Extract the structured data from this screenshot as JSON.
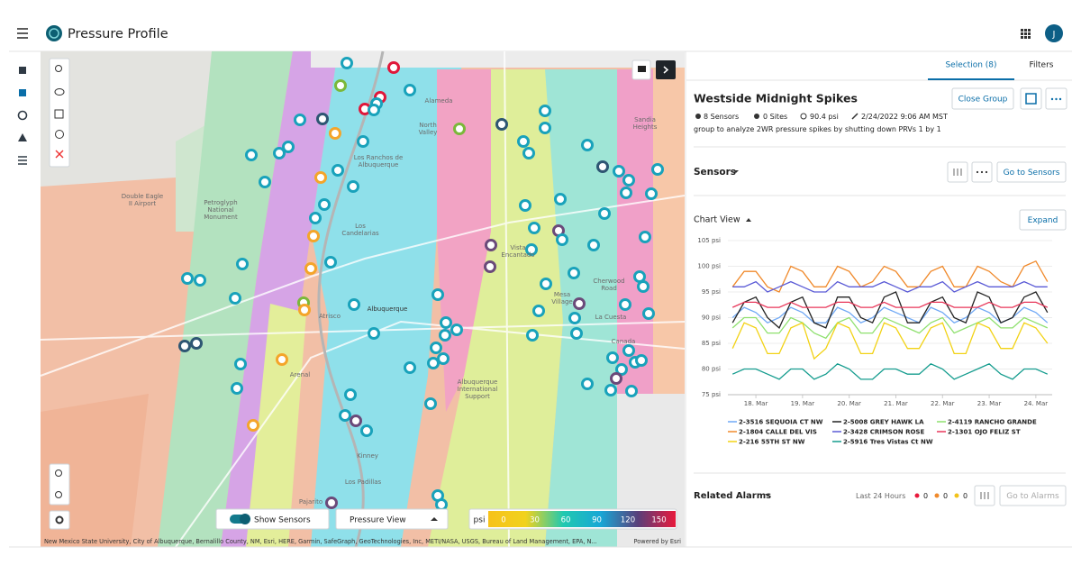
{
  "header": {
    "title": "Pressure Profile",
    "avatar": "J"
  },
  "map": {
    "places": [
      [
        "Alameda"
      ],
      [
        "North",
        "Valley"
      ],
      [
        "Los Ranchos de",
        "Albuquerque"
      ],
      [
        "Sandia",
        "Heights"
      ],
      [
        "Double Eagle",
        "II Airport"
      ],
      [
        "Petroglyph",
        "National",
        "Monument"
      ],
      [
        "Los",
        "Candelarias"
      ],
      [
        "Vista",
        "Encantado"
      ],
      [
        "Cherwood",
        "Road"
      ],
      [
        "Mesa",
        "Village"
      ],
      [
        "La Cuesta"
      ],
      [
        "Albuquerque"
      ],
      [
        "Atrisco"
      ],
      [
        "Canada"
      ],
      [
        "Arenal"
      ],
      [
        "Albuquerque",
        "International",
        "Support"
      ],
      [
        "Kinney"
      ],
      [
        "Los Padillas"
      ],
      [
        "Pajarito"
      ]
    ],
    "toggle": "Show Sensors",
    "view": "Pressure View",
    "legend": {
      "unit": "psi",
      "ticks": [
        0,
        30,
        60,
        90,
        120,
        150
      ]
    },
    "attribution": "New Mexico State University, City of Albuquerque, Bernalillo County, NM, Esri, HERE, Garmin, SafeGraph, GeoTechnologies, Inc, METI/NASA, USGS, Bureau of Land Management, EPA, N...",
    "powered": "Powered by Esri"
  },
  "panel": {
    "tabs": [
      "Selection (8)",
      "Filters"
    ],
    "group": {
      "title": "Westside Midnight Spikes",
      "close": "Close Group",
      "sensors": "8 Sensors",
      "sites": "0 Sites",
      "pressure": "90.4 psi",
      "date": "2/24/2022 9:06 AM MST",
      "description": "group to analyze 2WR pressure spikes by shutting down PRVs 1 by 1"
    },
    "sensors": {
      "title": "Sensors",
      "button": "Go to Sensors"
    },
    "chart_view": {
      "title": "Chart View",
      "button": "Expand"
    },
    "alarms": {
      "title": "Related Alarms",
      "period": "Last 24 Hours",
      "counts": [
        0,
        0,
        0
      ],
      "button": "Go to Alarms"
    }
  },
  "chart_data": {
    "type": "line",
    "x": [
      17.5,
      17.75,
      18,
      18.25,
      18.5,
      18.75,
      19,
      19.25,
      19.5,
      19.75,
      20,
      20.25,
      20.5,
      20.75,
      21,
      21.25,
      21.5,
      21.75,
      22,
      22.25,
      22.5,
      22.75,
      23,
      23.25,
      23.5,
      23.75,
      24,
      24.25
    ],
    "xlim": [
      17.4,
      24.35
    ],
    "xticks": [
      {
        "value": 18,
        "label": "18. Mar"
      },
      {
        "value": 19,
        "label": "19. Mar"
      },
      {
        "value": 20,
        "label": "20. Mar"
      },
      {
        "value": 21,
        "label": "21. Mar"
      },
      {
        "value": 22,
        "label": "22. Mar"
      },
      {
        "value": 23,
        "label": "23. Mar"
      },
      {
        "value": 24,
        "label": "24. Mar"
      }
    ],
    "ylim": [
      75,
      105
    ],
    "yticks": [
      {
        "value": 75,
        "label": "75 psi"
      },
      {
        "value": 80,
        "label": "80 psi"
      },
      {
        "value": 85,
        "label": "85 psi"
      },
      {
        "value": 90,
        "label": "90 psi"
      },
      {
        "value": 95,
        "label": "95 psi"
      },
      {
        "value": 100,
        "label": "100 psi"
      },
      {
        "value": 105,
        "label": "105 psi"
      }
    ],
    "grid": true,
    "series": [
      {
        "name": "2-3516 SEQUOIA CT NW",
        "color": "#6fa8f5",
        "values": [
          90,
          92,
          91,
          89,
          90,
          92,
          91,
          89,
          89,
          92,
          91,
          89,
          90,
          92,
          91,
          90,
          89,
          92,
          91,
          89,
          90,
          92,
          91,
          89,
          90,
          92,
          91,
          89
        ]
      },
      {
        "name": "2-5008 GREY HAWK LA",
        "color": "#222222",
        "values": [
          89,
          93,
          94,
          90,
          88,
          93,
          94,
          89,
          88,
          94,
          94,
          90,
          89,
          94,
          95,
          89,
          89,
          93,
          94,
          90,
          89,
          95,
          94,
          89,
          90,
          94,
          95,
          91
        ]
      },
      {
        "name": "2-4119 RANCHO GRANDE",
        "color": "#8ee06e",
        "values": [
          88,
          90,
          90,
          87,
          87,
          90,
          89,
          87,
          86,
          89,
          90,
          87,
          87,
          90,
          89,
          88,
          87,
          89,
          90,
          87,
          88,
          89,
          90,
          88,
          88,
          90,
          89,
          88
        ]
      },
      {
        "name": "2-1804 CALLE DEL VIS",
        "color": "#f08a2c",
        "values": [
          96,
          99,
          99,
          96,
          95,
          100,
          99,
          96,
          96,
          100,
          99,
          96,
          97,
          100,
          99,
          96,
          96,
          99,
          100,
          96,
          96,
          100,
          99,
          97,
          96,
          100,
          101,
          97
        ]
      },
      {
        "name": "2-3428 CRIMSON ROSE",
        "color": "#5b5bd6",
        "values": [
          96,
          96,
          97,
          95,
          96,
          97,
          96,
          95,
          95,
          97,
          96,
          96,
          96,
          97,
          96,
          95,
          96,
          96,
          97,
          95,
          96,
          97,
          96,
          96,
          96,
          97,
          96,
          96
        ]
      },
      {
        "name": "2-1301 OJO FELIZ ST",
        "color": "#e8375a",
        "values": [
          92,
          93,
          93,
          92,
          92,
          93,
          92,
          92,
          92,
          93,
          93,
          92,
          92,
          93,
          92,
          92,
          92,
          93,
          93,
          92,
          92,
          92,
          93,
          92,
          92,
          93,
          93,
          92
        ]
      },
      {
        "name": "2-216 55TH ST NW",
        "color": "#f2d214",
        "values": [
          84,
          89,
          88,
          83,
          83,
          88,
          89,
          82,
          84,
          89,
          88,
          83,
          83,
          89,
          88,
          84,
          84,
          88,
          89,
          83,
          83,
          89,
          88,
          84,
          84,
          89,
          88,
          85
        ]
      },
      {
        "name": "2-5916 Tres Vistas Ct NW",
        "color": "#149c8e",
        "values": [
          79,
          80,
          80,
          79,
          78,
          80,
          80,
          78,
          79,
          81,
          80,
          78,
          78,
          80,
          80,
          79,
          79,
          81,
          80,
          78,
          79,
          80,
          81,
          79,
          78,
          80,
          80,
          79
        ]
      }
    ]
  }
}
